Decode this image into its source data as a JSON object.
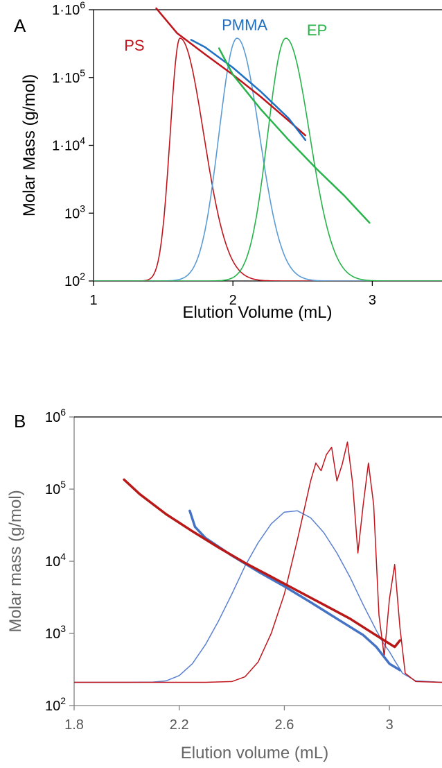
{
  "chart_data": [
    {
      "panel": "A",
      "type": "line",
      "xlabel": "Elution Volume (mL)",
      "ylabel": "Molar Mass (g/mol)",
      "xlim": [
        1,
        3.5
      ],
      "ylim": [
        100,
        1000000
      ],
      "y_scale": "log",
      "x_ticks": [
        {
          "value": 1,
          "label": "1"
        },
        {
          "value": 2,
          "label": "2"
        },
        {
          "value": 3,
          "label": "3"
        }
      ],
      "y_ticks": [
        {
          "value": 100,
          "label": "10",
          "exp": "2"
        },
        {
          "value": 1000,
          "label": "10",
          "exp": "3"
        },
        {
          "value": 10000,
          "label": "1·10",
          "exp": "4"
        },
        {
          "value": 100000,
          "label": "1·10",
          "exp": "5"
        },
        {
          "value": 1000000,
          "label": "1·10",
          "exp": "6"
        }
      ],
      "axis_color": "#000000",
      "series": [
        {
          "name": "PS",
          "kind": "peak",
          "color": "#c0141c",
          "peak_x": 1.62,
          "sigma_left": 0.07,
          "sigma_right": 0.17,
          "peak_y": 380000,
          "baseline_y": 100
        },
        {
          "name": "PMMA",
          "kind": "peak",
          "color": "#5a9bd5",
          "peak_x": 2.03,
          "sigma_left": 0.13,
          "sigma_right": 0.16,
          "peak_y": 380000,
          "baseline_y": 100
        },
        {
          "name": "EP",
          "kind": "peak",
          "color": "#26b34a",
          "peak_x": 2.38,
          "sigma_left": 0.13,
          "sigma_right": 0.17,
          "peak_y": 380000,
          "baseline_y": 100
        },
        {
          "name": "",
          "kind": "mass",
          "color": "#c0141c",
          "x": [
            1.45,
            1.6,
            1.8,
            2.0,
            2.2,
            2.4,
            2.52
          ],
          "y": [
            1050000,
            450000,
            220000,
            110000,
            52000,
            23000,
            14000
          ]
        },
        {
          "name": "",
          "kind": "mass",
          "color": "#1f6fc2",
          "x": [
            1.7,
            1.8,
            2.0,
            2.2,
            2.4,
            2.52
          ],
          "y": [
            360000,
            280000,
            140000,
            62000,
            25000,
            12000
          ]
        },
        {
          "name": "",
          "kind": "mass",
          "color": "#26b34a",
          "x": [
            1.9,
            2.0,
            2.2,
            2.4,
            2.6,
            2.8,
            2.98
          ],
          "y": [
            270000,
            110000,
            34000,
            12000,
            4500,
            1800,
            720
          ]
        }
      ],
      "labels": [
        {
          "text": "PS",
          "x": 1.22,
          "y": 250000,
          "color": "#c0141c"
        },
        {
          "text": "PMMA",
          "x": 1.92,
          "y": 500000,
          "color": "#1f6fc2"
        },
        {
          "text": "EP",
          "x": 2.53,
          "y": 420000,
          "color": "#26b34a"
        }
      ]
    },
    {
      "panel": "B",
      "type": "line",
      "xlabel": "Elution volume (mL)",
      "ylabel": "Molar mass (g/mol)",
      "xlim": [
        1.8,
        3.2
      ],
      "ylim": [
        100,
        1000000
      ],
      "y_scale": "log",
      "x_ticks": [
        {
          "value": 1.8,
          "label": "1.8"
        },
        {
          "value": 2.2,
          "label": "2.2"
        },
        {
          "value": 2.6,
          "label": "2.6"
        },
        {
          "value": 3.0,
          "label": "3"
        }
      ],
      "y_ticks": [
        {
          "value": 100,
          "label": "10",
          "exp": "2"
        },
        {
          "value": 1000,
          "label": "10",
          "exp": "3"
        },
        {
          "value": 10000,
          "label": "10",
          "exp": "4"
        },
        {
          "value": 100000,
          "label": "10",
          "exp": "5"
        },
        {
          "value": 1000000,
          "label": "10",
          "exp": "6"
        }
      ],
      "axis_color": "#808080",
      "series": [
        {
          "name": "",
          "kind": "trace",
          "color": "#5a80d0",
          "width": 1.5,
          "x": [
            1.8,
            2.0,
            2.1,
            2.15,
            2.2,
            2.25,
            2.3,
            2.35,
            2.4,
            2.45,
            2.5,
            2.55,
            2.6,
            2.65,
            2.7,
            2.75,
            2.8,
            2.85,
            2.9,
            2.95,
            2.98,
            3.0,
            3.02,
            3.05,
            3.1,
            3.2
          ],
          "y": [
            210,
            210,
            212,
            220,
            260,
            380,
            700,
            1500,
            3500,
            8500,
            18000,
            33000,
            48000,
            50000,
            40000,
            25000,
            13000,
            6000,
            2500,
            1100,
            700,
            560,
            420,
            280,
            220,
            210
          ]
        },
        {
          "name": "",
          "kind": "trace",
          "color": "#c0141c",
          "width": 1.5,
          "x": [
            1.8,
            2.3,
            2.4,
            2.45,
            2.5,
            2.55,
            2.6,
            2.65,
            2.7,
            2.72,
            2.74,
            2.76,
            2.78,
            2.8,
            2.82,
            2.84,
            2.86,
            2.88,
            2.9,
            2.92,
            2.94,
            2.96,
            2.98,
            3.0,
            3.02,
            3.04,
            3.06,
            3.1,
            3.2
          ],
          "y": [
            210,
            210,
            215,
            250,
            400,
            1000,
            3500,
            20000,
            130000,
            230000,
            180000,
            300000,
            380000,
            130000,
            220000,
            450000,
            120000,
            13000,
            60000,
            230000,
            60000,
            1800,
            480,
            3000,
            9000,
            1200,
            280,
            215,
            210
          ]
        },
        {
          "name": "",
          "kind": "mass",
          "color": "#4472c4",
          "width": 3.5,
          "x": [
            2.24,
            2.26,
            2.3,
            2.4,
            2.5,
            2.6,
            2.7,
            2.8,
            2.9,
            2.95,
            3.0,
            3.04
          ],
          "y": [
            50000,
            30000,
            21000,
            12000,
            7200,
            4500,
            2700,
            1600,
            950,
            650,
            380,
            310
          ]
        },
        {
          "name": "",
          "kind": "mass",
          "color": "#b81818",
          "width": 3.5,
          "x": [
            1.99,
            2.05,
            2.15,
            2.25,
            2.35,
            2.45,
            2.55,
            2.65,
            2.75,
            2.85,
            2.92,
            2.98,
            3.02,
            3.04
          ],
          "y": [
            135000,
            85000,
            45000,
            26000,
            15500,
            9500,
            6100,
            3900,
            2500,
            1600,
            1100,
            800,
            650,
            800
          ]
        }
      ],
      "labels": []
    }
  ]
}
